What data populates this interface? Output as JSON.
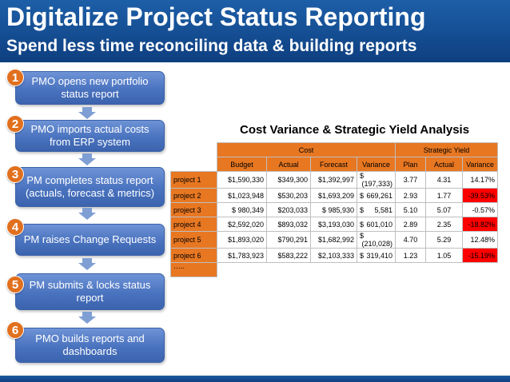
{
  "title": "Digitalize Project Status Reporting",
  "subtitle": "Spend less time reconciling data & building reports",
  "steps": [
    {
      "num": "1",
      "label": "PMO opens new portfolio status report"
    },
    {
      "num": "2",
      "label": "PMO imports actual costs from ERP system"
    },
    {
      "num": "3",
      "label": "PM completes status report (actuals, forecast & metrics)"
    },
    {
      "num": "4",
      "label": "PM raises Change Requests"
    },
    {
      "num": "5",
      "label": "PM submits & locks status report"
    },
    {
      "num": "6",
      "label": "PMO builds reports and dashboards"
    }
  ],
  "table": {
    "title": "Cost Variance & Strategic Yield Analysis",
    "group_cost": "Cost",
    "group_yield": "Strategic Yield",
    "columns": [
      "Budget",
      "Actual",
      "Forecast",
      "Variance",
      "Plan",
      "Actual",
      "Variance"
    ],
    "rows": [
      {
        "name": "project 1",
        "budget": "$1,590,330",
        "actual": "$349,300",
        "forecast": "$1,392,997",
        "var_sym": "$",
        "var_val": "(197,333)",
        "plan": "3.77",
        "y_actual": "4.31",
        "y_var": "14.17%",
        "neg": false
      },
      {
        "name": "project 2",
        "budget": "$1,023,948",
        "actual": "$530,203",
        "forecast": "$1,693,209",
        "var_sym": "$",
        "var_val": "669,261",
        "plan": "2.93",
        "y_actual": "1.77",
        "y_var": "-39.53%",
        "neg": true
      },
      {
        "name": "project 3",
        "budget": "$     980,349",
        "actual": "$203,033",
        "forecast": "$   985,930",
        "var_sym": "$",
        "var_val": "5,581",
        "plan": "5.10",
        "y_actual": "5.07",
        "y_var": "-0.57%",
        "neg": false
      },
      {
        "name": "project 4",
        "budget": "$2,592,020",
        "actual": "$893,032",
        "forecast": "$3,193,030",
        "var_sym": "$",
        "var_val": "601,010",
        "plan": "2.89",
        "y_actual": "2.35",
        "y_var": "-18.82%",
        "neg": true
      },
      {
        "name": "project 5",
        "budget": "$1,893,020",
        "actual": "$790,291",
        "forecast": "$1,682,992",
        "var_sym": "$",
        "var_val": "(210,028)",
        "plan": "4.70",
        "y_actual": "5.29",
        "y_var": "12.48%",
        "neg": false
      },
      {
        "name": "project 6",
        "budget": "$1,783,923",
        "actual": "$583,222",
        "forecast": "$2,103,333",
        "var_sym": "$",
        "var_val": "319,410",
        "plan": "1.23",
        "y_actual": "1.05",
        "y_var": "-15.19%",
        "neg": true
      }
    ],
    "ellipsis": "….."
  },
  "colors": {
    "header": "#0e3f80",
    "step": "#4a73bf",
    "badge": "#e1701e",
    "table_header": "#e87722",
    "negative": "#ff0000"
  }
}
